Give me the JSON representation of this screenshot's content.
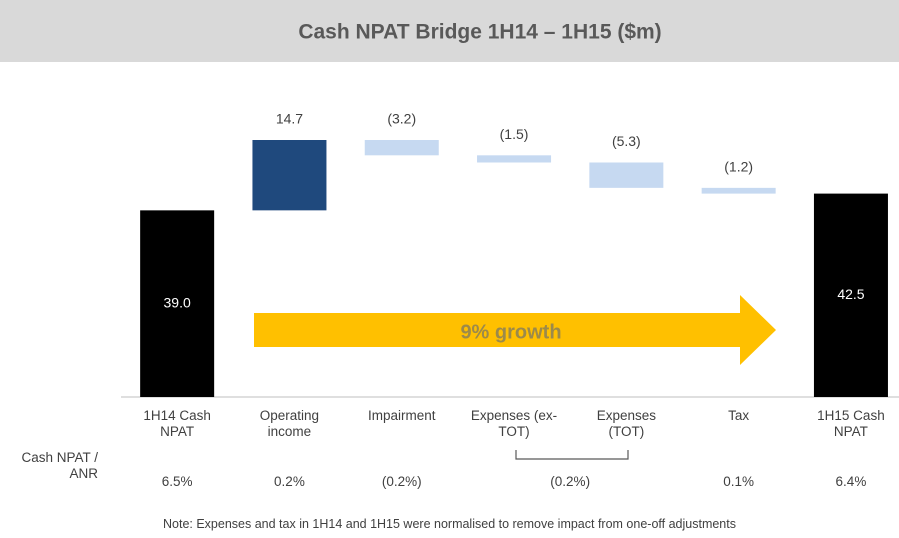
{
  "chart_data": {
    "type": "waterfall",
    "title": "Cash NPAT Bridge 1H14 – 1H15 ($m)",
    "categories": [
      "1H14 Cash NPAT",
      "Operating income",
      "Impairment",
      "Expenses (ex-TOT)",
      "Expenses (TOT)",
      "Tax",
      "1H15 Cash NPAT"
    ],
    "values": [
      39.0,
      14.7,
      -3.2,
      -1.5,
      -5.3,
      -1.2,
      42.5
    ],
    "value_labels": [
      "39.0",
      "14.7",
      "(3.2)",
      "(1.5)",
      "(5.3)",
      "(1.2)",
      "42.5"
    ],
    "is_total": [
      true,
      false,
      false,
      false,
      false,
      false,
      true
    ],
    "total_color": "#000000",
    "increase_color": "#1f497d",
    "decrease_color": "#c6d9f1",
    "annotation": "9% growth",
    "arrow_color": "#ffc000",
    "ratio_row": {
      "label": "Cash NPAT / ANR",
      "items": [
        {
          "value": 6.5,
          "label": "6.5%"
        },
        {
          "value": 0.2,
          "label": "0.2%"
        },
        {
          "value": -0.2,
          "label": "(0.2%)"
        },
        {
          "value": -0.2,
          "label": "(0.2%)"
        },
        {
          "value": 0.1,
          "label": "0.1%"
        },
        {
          "value": 6.4,
          "label": "6.4%"
        }
      ]
    },
    "note": "Note:  Expenses and tax in 1H14 and 1H15 were normalised to remove impact from one-off adjustments"
  }
}
